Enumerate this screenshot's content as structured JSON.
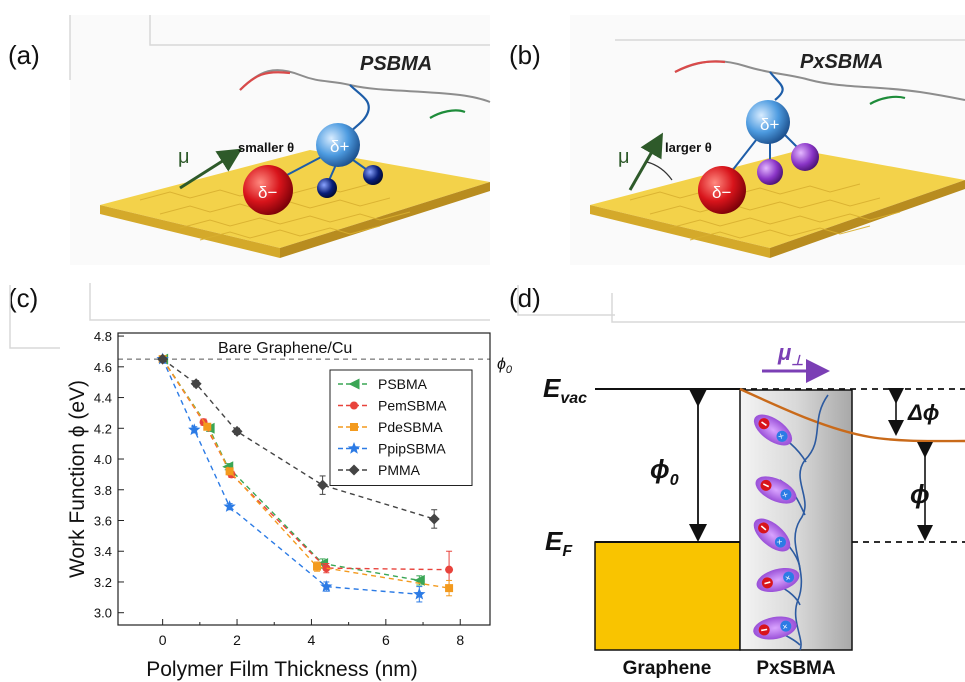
{
  "panels": {
    "a": {
      "label": "(a)",
      "title": "PSBMA",
      "mu": "μ",
      "theta_text": "smaller θ",
      "delta_plus": "δ+",
      "delta_minus": "δ−"
    },
    "b": {
      "label": "(b)",
      "title": "PxSBMA",
      "mu": "μ",
      "theta_text": "larger θ",
      "delta_plus": "δ+",
      "delta_minus": "δ−"
    },
    "c": {
      "label": "(c)"
    },
    "d": {
      "label": "(d)",
      "e_vac": "E",
      "e_vac_sub": "vac",
      "e_f": "E",
      "e_f_sub": "F",
      "phi0": "ϕ",
      "phi0_sub": "0",
      "delta_phi": "Δϕ",
      "phi": "ϕ",
      "mu_perp": "μ",
      "mu_perp_sub": "⊥",
      "graphene_label": "Graphene",
      "polymer_label": "PxSBMA"
    }
  },
  "colors": {
    "gold": "#f9c400",
    "orange_curve": "#c96a1a",
    "purple": "#7b3fb5"
  },
  "chart_data": {
    "type": "scatter",
    "xlabel": "Polymer Film Thickness (nm)",
    "ylabel": "Work Function ϕ (eV)",
    "xlim": [
      -1.2,
      8.8
    ],
    "ylim": [
      2.92,
      4.82
    ],
    "xticks": [
      0,
      2,
      4,
      6,
      8
    ],
    "yticks": [
      3.0,
      3.2,
      3.4,
      3.6,
      3.8,
      4.0,
      4.2,
      4.4,
      4.6,
      4.8
    ],
    "reference_line": {
      "y": 4.65,
      "label": "Bare Graphene/Cu",
      "symbol": "ϕ",
      "symbol_sub": "0"
    },
    "legend_position": "top-right",
    "series": [
      {
        "name": "PSBMA",
        "color": "#3aa655",
        "marker": "triangle-left",
        "points": [
          {
            "x": 0,
            "y": 4.65
          },
          {
            "x": 1.25,
            "y": 4.2
          },
          {
            "x": 1.75,
            "y": 3.95
          },
          {
            "x": 4.3,
            "y": 3.32
          },
          {
            "x": 6.9,
            "y": 3.21
          }
        ],
        "errors": [
          0,
          0.02,
          0.02,
          0.03,
          0.03
        ]
      },
      {
        "name": "PemSBMA",
        "color": "#e8433c",
        "marker": "circle",
        "points": [
          {
            "x": 0,
            "y": 4.65
          },
          {
            "x": 1.1,
            "y": 4.24
          },
          {
            "x": 1.85,
            "y": 3.9
          },
          {
            "x": 4.4,
            "y": 3.29
          },
          {
            "x": 7.7,
            "y": 3.28
          }
        ],
        "errors": [
          0,
          0.02,
          0.02,
          0.03,
          0.12
        ]
      },
      {
        "name": "PdeSBMA",
        "color": "#f39a1e",
        "marker": "square",
        "points": [
          {
            "x": 0,
            "y": 4.65
          },
          {
            "x": 1.2,
            "y": 4.21
          },
          {
            "x": 1.8,
            "y": 3.92
          },
          {
            "x": 4.15,
            "y": 3.3
          },
          {
            "x": 7.7,
            "y": 3.16
          }
        ],
        "errors": [
          0,
          0.02,
          0.02,
          0.03,
          0.05
        ]
      },
      {
        "name": "PpipSBMA",
        "color": "#2c7be5",
        "marker": "star",
        "points": [
          {
            "x": 0,
            "y": 4.65
          },
          {
            "x": 0.85,
            "y": 4.19
          },
          {
            "x": 1.8,
            "y": 3.69
          },
          {
            "x": 4.4,
            "y": 3.17
          },
          {
            "x": 6.9,
            "y": 3.12
          }
        ],
        "errors": [
          0,
          0.02,
          0.02,
          0.03,
          0.05
        ]
      },
      {
        "name": "PMMA",
        "color": "#444444",
        "marker": "diamond",
        "points": [
          {
            "x": 0,
            "y": 4.65
          },
          {
            "x": 0.9,
            "y": 4.49
          },
          {
            "x": 2.0,
            "y": 4.18
          },
          {
            "x": 4.3,
            "y": 3.83
          },
          {
            "x": 7.3,
            "y": 3.61
          }
        ],
        "errors": [
          0,
          0.02,
          0.02,
          0.06,
          0.06
        ]
      }
    ]
  }
}
